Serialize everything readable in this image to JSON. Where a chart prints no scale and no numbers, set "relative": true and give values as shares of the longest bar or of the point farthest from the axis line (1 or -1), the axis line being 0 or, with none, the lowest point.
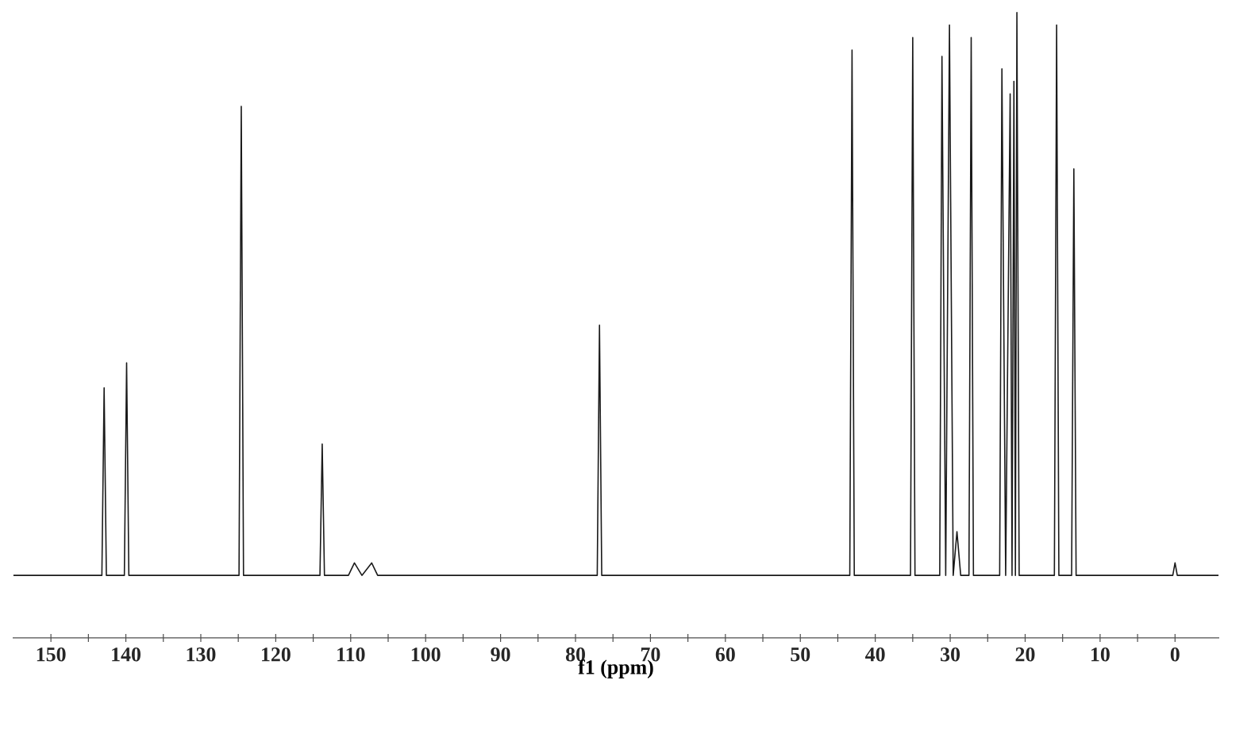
{
  "chart_data": {
    "type": "line",
    "relative": true,
    "xlabel": "f1 (ppm)",
    "color": "#1a1a1a",
    "xlim": [
      155.1,
      -5.9
    ],
    "xticks": [
      150,
      140,
      130,
      120,
      110,
      100,
      90,
      80,
      70,
      60,
      50,
      40,
      30,
      20,
      10,
      0
    ],
    "x": [
      155,
      143.2,
      142.9,
      142.6,
      140.2,
      139.9,
      139.6,
      124.9,
      124.6,
      124.3,
      114.1,
      113.8,
      113.5,
      110.3,
      109.5,
      108.5,
      107.2,
      106.4,
      77.1,
      76.8,
      76.5,
      43.4,
      43.1,
      42.8,
      35.3,
      35.0,
      34.7,
      31.4,
      31.1,
      30.6,
      30.1,
      29.6,
      29.1,
      28.6,
      27.5,
      27.2,
      26.9,
      23.4,
      23.1,
      22.6,
      22.0,
      21.75,
      21.5,
      21.3,
      21.1,
      20.8,
      16.1,
      15.8,
      15.5,
      13.8,
      13.5,
      13.2,
      0.3,
      0,
      -0.3,
      -5.8
    ],
    "values": [
      0.1,
      0.1,
      0.4,
      0.1,
      0.1,
      0.44,
      0.1,
      0.1,
      0.85,
      0.1,
      0.1,
      0.31,
      0.1,
      0.1,
      0.12,
      0.1,
      0.12,
      0.1,
      0.1,
      0.5,
      0.1,
      0.1,
      0.94,
      0.1,
      0.1,
      0.96,
      0.1,
      0.1,
      0.93,
      0.1,
      0.98,
      0.1,
      0.17,
      0.1,
      0.1,
      0.96,
      0.1,
      0.1,
      0.91,
      0.1,
      0.87,
      0.1,
      0.89,
      0.1,
      1.0,
      0.1,
      0.1,
      0.98,
      0.1,
      0.1,
      0.75,
      0.1,
      0.1,
      0.12,
      0.1,
      0.1
    ]
  }
}
